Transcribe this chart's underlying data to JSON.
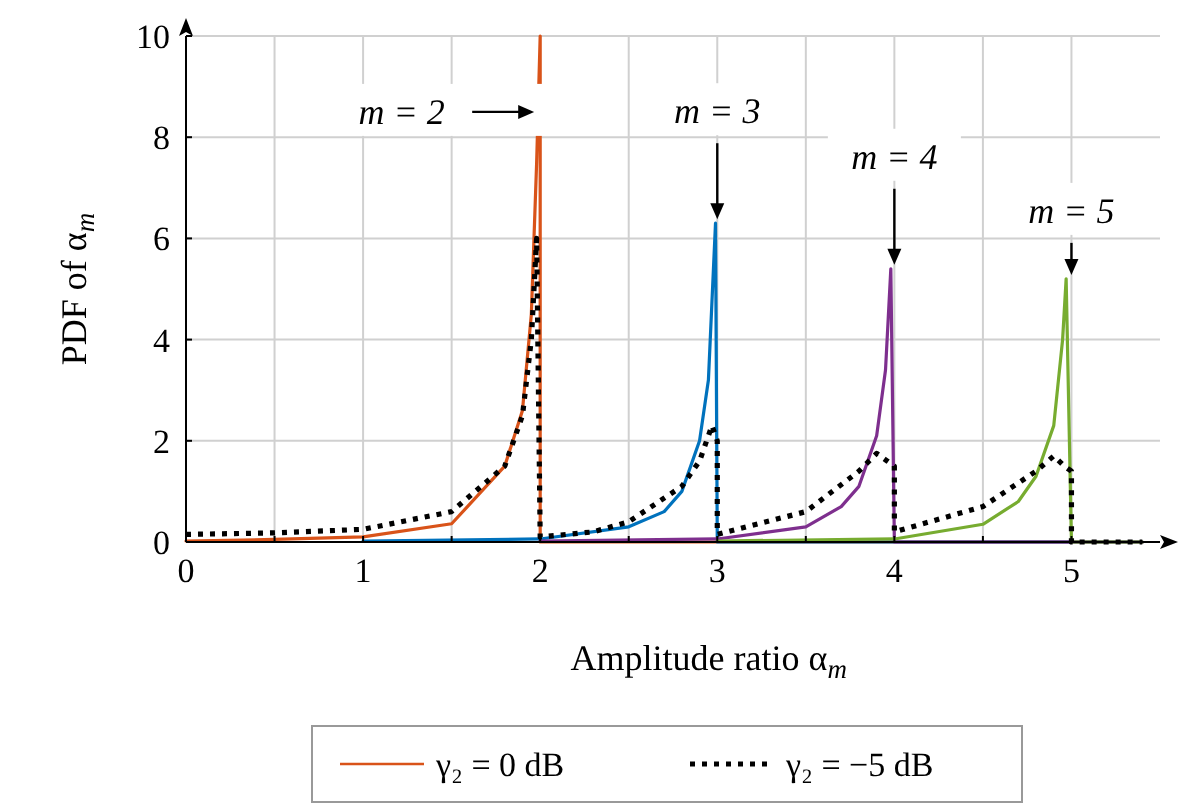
{
  "chart_data": {
    "type": "line",
    "xlabel": "Amplitude ratio α$_{m}$",
    "ylabel": "PDF of α$_{m}$",
    "xlim": [
      0,
      5.5
    ],
    "ylim": [
      0,
      10
    ],
    "xticks": [
      0,
      {
        "value": 0.5,
        "label": null
      },
      1,
      {
        "value": 1.5,
        "label": null
      },
      2,
      {
        "value": 2.5,
        "label": null
      },
      3,
      {
        "value": 3.5,
        "label": null
      },
      4,
      {
        "value": 4.5,
        "label": null
      },
      5
    ],
    "yticks": [
      0,
      2,
      4,
      6,
      8,
      10
    ],
    "grid": true,
    "legend": "bottom",
    "marker": "none",
    "series": [
      {
        "name": "γ₂ = 0 dB",
        "color": "#d95319",
        "line_style": "solid",
        "x": [
          0,
          0.5,
          1,
          1.5,
          1.8,
          1.9,
          1.95,
          1.98,
          2,
          2,
          5.4
        ],
        "values": [
          0.02,
          0.05,
          0.1,
          0.36,
          1.5,
          2.6,
          4.5,
          7.5,
          10,
          0,
          0
        ]
      },
      {
        "color": "#0072bd",
        "line_style": "solid",
        "x": [
          1,
          2,
          2.5,
          2.7,
          2.8,
          2.9,
          2.95,
          2.99,
          3,
          5.4
        ],
        "values": [
          0.02,
          0.06,
          0.3,
          0.6,
          1.0,
          2.0,
          3.2,
          6.3,
          0,
          0
        ]
      },
      {
        "color": "#7e2f8e",
        "line_style": "solid",
        "x": [
          2,
          3,
          3.5,
          3.7,
          3.8,
          3.9,
          3.95,
          3.98,
          4,
          5.4
        ],
        "values": [
          0.02,
          0.06,
          0.3,
          0.7,
          1.1,
          2.1,
          3.4,
          5.4,
          0,
          0
        ]
      },
      {
        "color": "#77ac30",
        "line_style": "solid",
        "x": [
          3,
          4,
          4.5,
          4.7,
          4.8,
          4.9,
          4.95,
          4.97,
          5,
          5.4
        ],
        "values": [
          0.02,
          0.06,
          0.35,
          0.8,
          1.3,
          2.3,
          4.0,
          5.2,
          0,
          0
        ]
      },
      {
        "name": "γ₂ = −5 dB",
        "color": "#000000",
        "line_style": "dotted",
        "x": [
          0,
          0.5,
          1,
          1.5,
          1.8,
          1.9,
          1.95,
          1.98,
          2,
          2.3,
          2.5,
          2.8,
          2.9,
          2.97,
          3,
          3,
          3.5,
          3.8,
          3.9,
          3.96,
          4,
          4,
          4.5,
          4.8,
          4.9,
          4.96,
          5,
          5,
          5.4
        ],
        "values": [
          0.15,
          0.18,
          0.25,
          0.6,
          1.5,
          2.5,
          4.0,
          6.0,
          0.1,
          0.2,
          0.4,
          1.1,
          1.6,
          2.3,
          2.0,
          0.15,
          0.6,
          1.4,
          1.75,
          1.6,
          1.5,
          0.2,
          0.7,
          1.4,
          1.7,
          1.5,
          1.4,
          0,
          0
        ]
      }
    ],
    "annotations": [
      {
        "text": "m = 2",
        "x": 2,
        "y": 8.5
      },
      {
        "text": "m = 3",
        "x": 3,
        "y": 6.3
      },
      {
        "text": "m = 4",
        "x": 4,
        "y": 5.4
      },
      {
        "text": "m = 5",
        "x": 5,
        "y": 5.2
      }
    ]
  }
}
